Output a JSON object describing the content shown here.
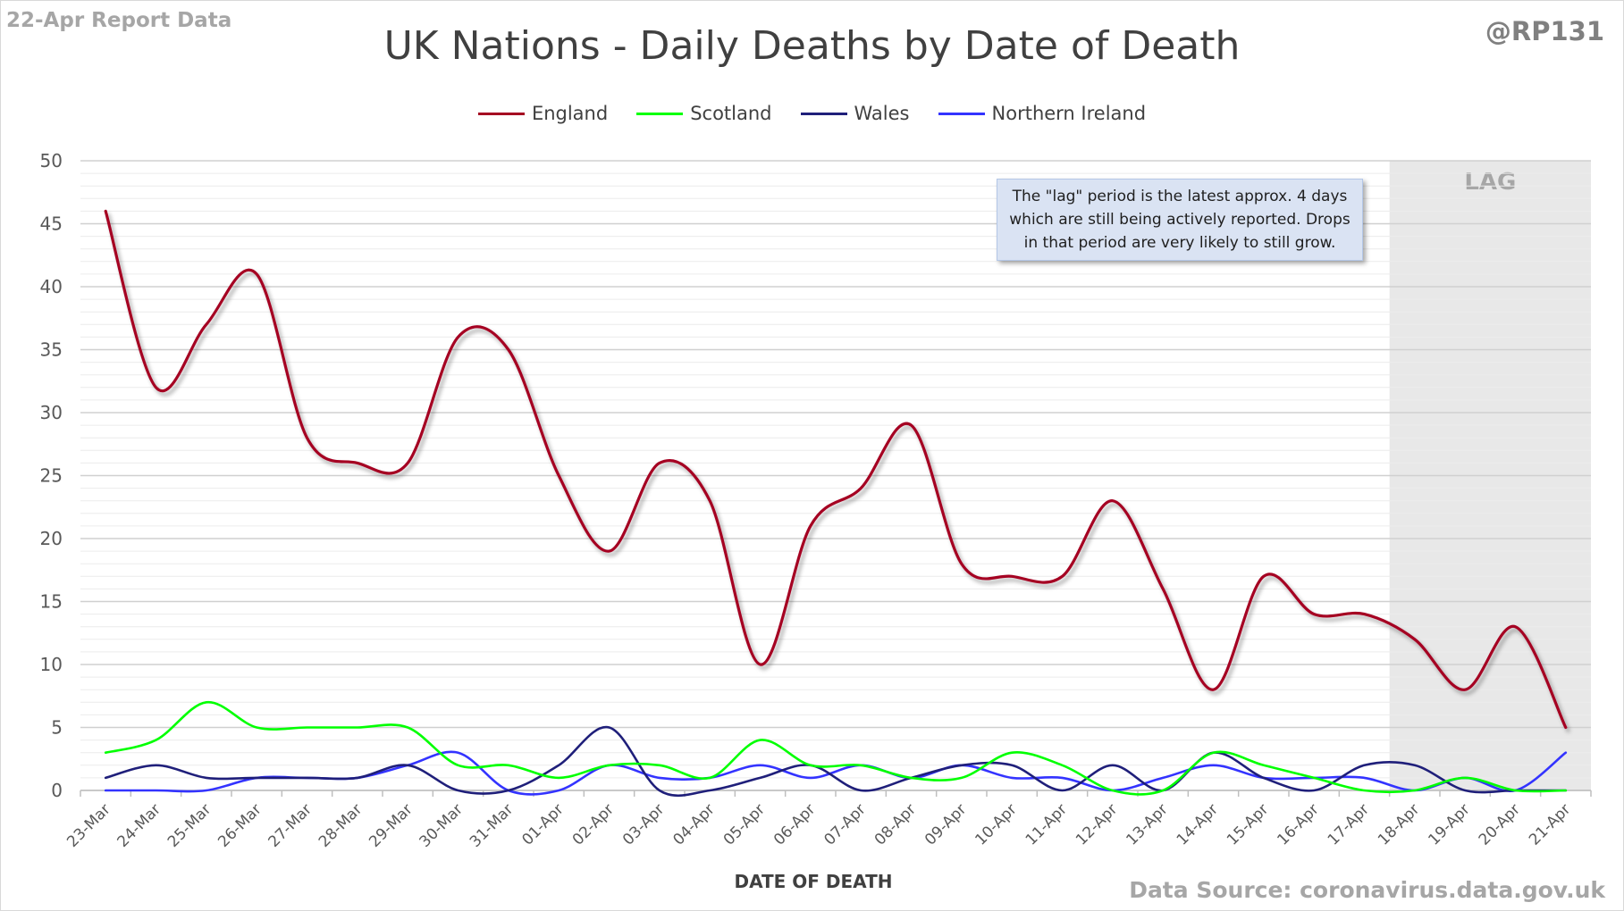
{
  "corner_left": "22-Apr Report Data",
  "corner_right": "@RP131",
  "source_text": "Data Source: coronavirus.data.gov.uk",
  "note_text": "The \"lag\" period is the latest approx. 4 days which are still being actively reported. Drops in that period are very likely to still grow.",
  "lag_label": "LAG",
  "chart_data": {
    "type": "line",
    "title": "UK Nations - Daily Deaths by Date of Death",
    "xlabel": "DATE OF DEATH",
    "ylabel": "",
    "ylim": [
      0,
      50
    ],
    "yticks": [
      0,
      5,
      10,
      15,
      20,
      25,
      30,
      35,
      40,
      45,
      50
    ],
    "grid": true,
    "legend_position": "top",
    "categories": [
      "23-Mar",
      "24-Mar",
      "25-Mar",
      "26-Mar",
      "27-Mar",
      "28-Mar",
      "29-Mar",
      "30-Mar",
      "31-Mar",
      "01-Apr",
      "02-Apr",
      "03-Apr",
      "04-Apr",
      "05-Apr",
      "06-Apr",
      "07-Apr",
      "08-Apr",
      "09-Apr",
      "10-Apr",
      "11-Apr",
      "12-Apr",
      "13-Apr",
      "14-Apr",
      "15-Apr",
      "16-Apr",
      "17-Apr",
      "18-Apr",
      "19-Apr",
      "20-Apr",
      "21-Apr"
    ],
    "lag_period": [
      "18-Apr",
      "21-Apr"
    ],
    "series": [
      {
        "name": "England",
        "color": "#a50021",
        "values": [
          46,
          32,
          37,
          41,
          28,
          26,
          26,
          36,
          35,
          25,
          19,
          26,
          23,
          10,
          21,
          24,
          29,
          18,
          17,
          17,
          23,
          16,
          8,
          17,
          14,
          14,
          12,
          8,
          13,
          5
        ]
      },
      {
        "name": "Scotland",
        "color": "#00ff00",
        "values": [
          3,
          4,
          7,
          5,
          5,
          5,
          5,
          2,
          2,
          1,
          2,
          2,
          1,
          4,
          2,
          2,
          1,
          1,
          3,
          2,
          0,
          0,
          3,
          2,
          1,
          0,
          0,
          1,
          0,
          0
        ]
      },
      {
        "name": "Wales",
        "color": "#1f1f7a",
        "values": [
          1,
          2,
          1,
          1,
          1,
          1,
          2,
          0,
          0,
          2,
          5,
          0,
          0,
          1,
          2,
          0,
          1,
          2,
          2,
          0,
          2,
          0,
          3,
          1,
          0,
          2,
          2,
          0,
          0,
          0
        ]
      },
      {
        "name": "Northern Ireland",
        "color": "#3333ff",
        "values": [
          0,
          0,
          0,
          1,
          1,
          1,
          2,
          3,
          0,
          0,
          2,
          1,
          1,
          2,
          1,
          2,
          1,
          2,
          1,
          1,
          0,
          1,
          2,
          1,
          1,
          1,
          0,
          1,
          0,
          3
        ]
      }
    ]
  }
}
